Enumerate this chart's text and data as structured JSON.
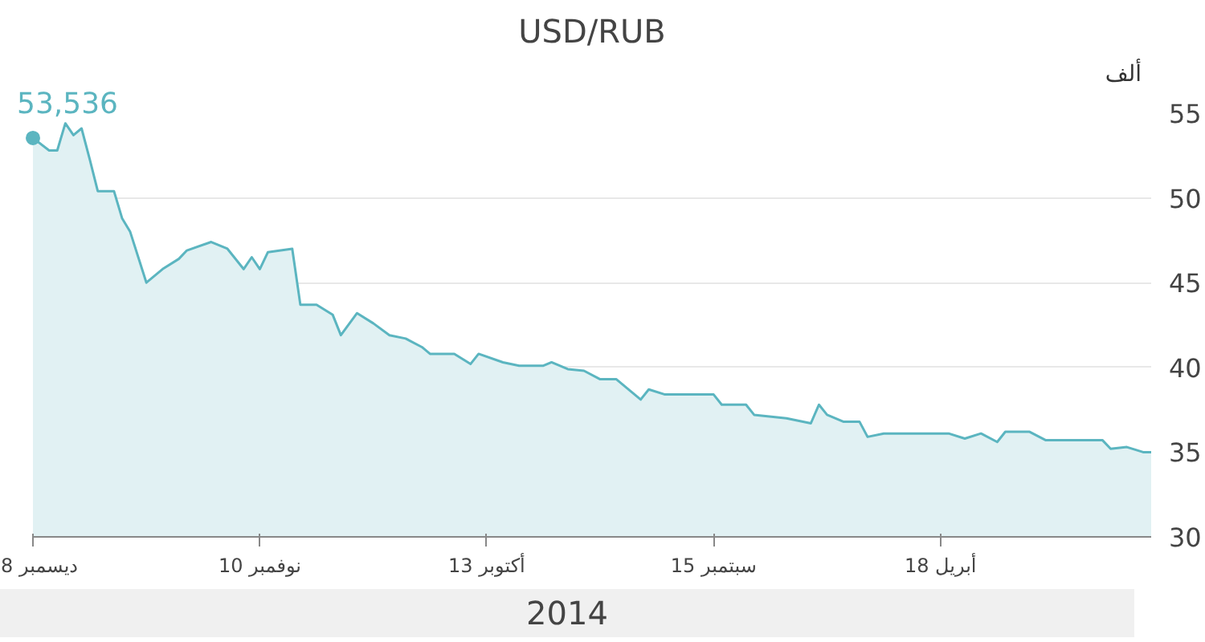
{
  "chart_data": {
    "type": "area",
    "title": "USD/RUB",
    "ylabel": "ألف",
    "x": [
      "2014-12-08",
      "2014-12-06",
      "2014-12-05",
      "2014-12-04",
      "2014-12-03",
      "2014-12-02",
      "2014-12-01",
      "2014-11-30",
      "2014-11-28",
      "2014-11-27",
      "2014-11-26",
      "2014-11-24",
      "2014-11-22",
      "2014-11-20",
      "2014-11-19",
      "2014-11-16",
      "2014-11-14",
      "2014-11-12",
      "2014-11-11",
      "2014-11-10",
      "2014-11-09",
      "2014-11-06",
      "2014-11-05",
      "2014-11-03",
      "2014-11-01",
      "2014-10-31",
      "2014-10-29",
      "2014-10-27",
      "2014-10-25",
      "2014-10-23",
      "2014-10-21",
      "2014-10-20",
      "2014-10-17",
      "2014-10-15",
      "2014-10-14",
      "2014-10-11",
      "2014-10-09",
      "2014-10-06",
      "2014-10-05",
      "2014-10-03",
      "2014-10-01",
      "2014-09-29",
      "2014-09-27",
      "2014-09-24",
      "2014-09-23",
      "2014-09-21",
      "2014-09-15",
      "2014-09-14",
      "2014-09-11",
      "2014-09-10",
      "2014-09-06",
      "2014-09-03",
      "2014-09-02",
      "2014-09-01",
      "2014-08-30",
      "2014-08-28",
      "2014-08-27",
      "2014-08-25",
      "2014-08-17",
      "2014-08-15",
      "2014-08-13",
      "2014-08-11",
      "2014-08-10",
      "2014-08-07",
      "2014-08-05",
      "2014-07-29",
      "2014-07-28",
      "2014-07-26",
      "2014-07-24",
      "2014-07-23"
    ],
    "series": [
      {
        "color": "#5bb5c0",
        "values": [
          53.536,
          52.8,
          52.8,
          54.4,
          53.7,
          54.1,
          52.3,
          50.4,
          50.4,
          48.8,
          48.0,
          45.0,
          45.8,
          46.4,
          46.9,
          47.4,
          47.0,
          45.8,
          46.5,
          45.8,
          46.8,
          47.0,
          43.7,
          43.7,
          43.1,
          41.9,
          43.2,
          42.6,
          41.9,
          41.7,
          41.2,
          40.8,
          40.8,
          40.2,
          40.8,
          40.3,
          40.1,
          40.1,
          40.3,
          39.9,
          39.8,
          39.3,
          39.3,
          38.1,
          38.7,
          38.4,
          38.4,
          37.8,
          37.8,
          37.2,
          37.0,
          36.7,
          37.8,
          37.2,
          36.8,
          36.8,
          35.9,
          36.1,
          36.1,
          35.8,
          36.1,
          35.6,
          36.2,
          36.2,
          35.7,
          35.7,
          35.2,
          35.3,
          35.0,
          35.0
        ]
      }
    ],
    "xlim": [
      "2014-12-08",
      "2014-07-23"
    ],
    "xticks": [
      {
        "value": "2014-12-08",
        "label": "8 ديسمبر"
      },
      {
        "value": "2014-11-10",
        "label": "10 نوفمبر"
      },
      {
        "value": "2014-10-13",
        "label": "13 أكتوبر"
      },
      {
        "value": "2014-09-15",
        "label": "15 سبتمبر"
      },
      {
        "value": "2014-08-18",
        "label": "18 أبريل"
      }
    ],
    "ylim": [
      30,
      55
    ],
    "yticks": [
      30,
      35,
      40,
      45,
      50,
      55
    ],
    "grid": "y",
    "annotations": [
      {
        "text": "53,536",
        "x": "2014-12-08",
        "y": 53.536
      },
      "2014"
    ]
  }
}
